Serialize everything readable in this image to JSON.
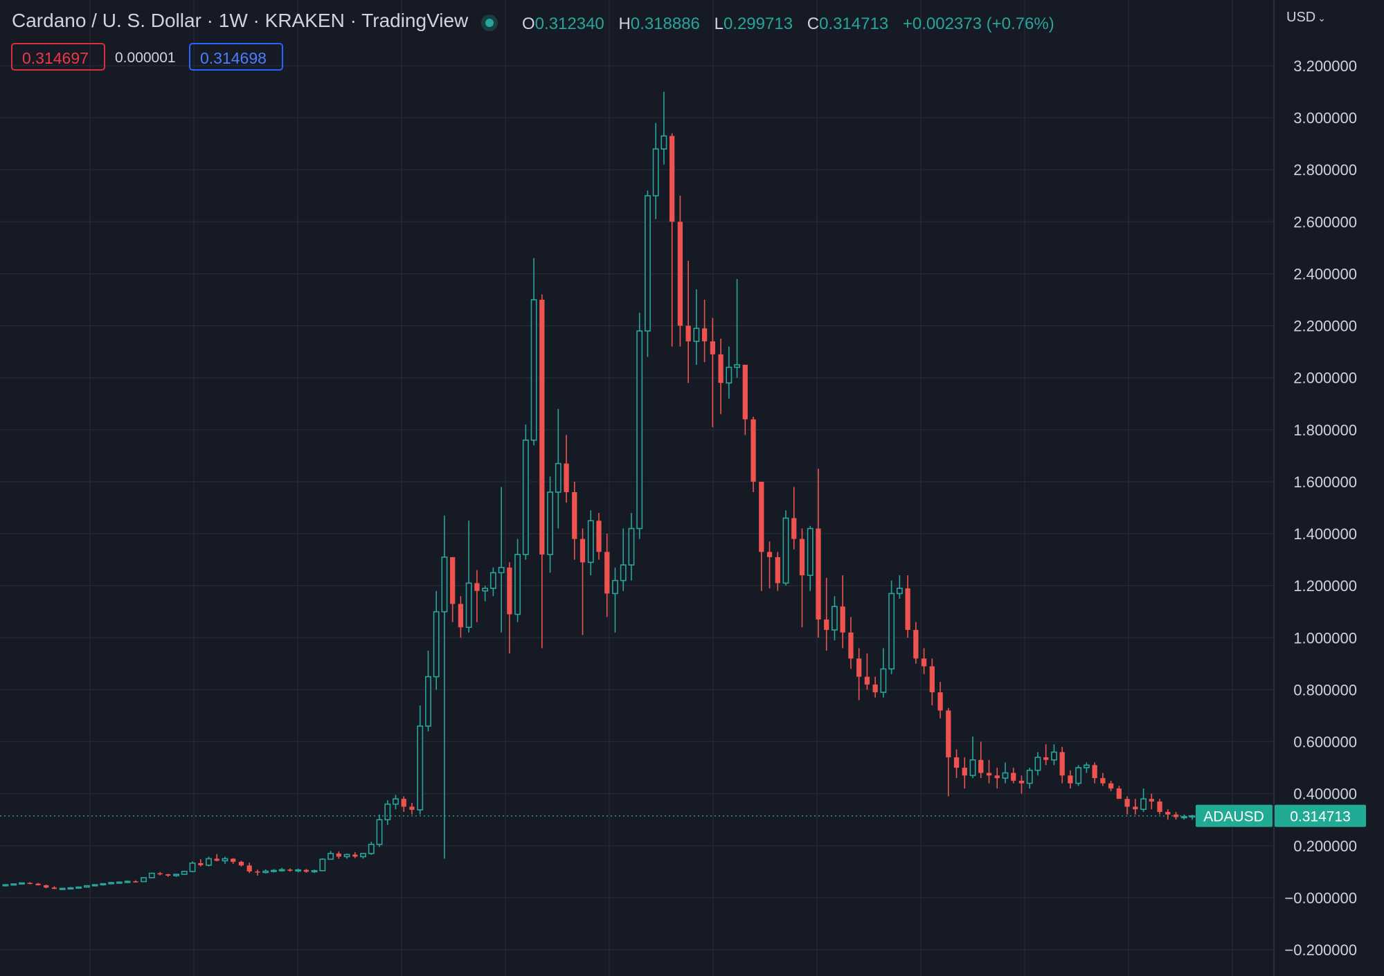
{
  "header": {
    "title": "Cardano / U. S. Dollar · 1W · KRAKEN · TradingView",
    "ohlc": {
      "o_label": "O",
      "o": "0.312340",
      "h_label": "H",
      "h": "0.318886",
      "l_label": "L",
      "l": "0.299713",
      "c_label": "C",
      "c": "0.314713",
      "change": "+0.002373 (+0.76%)"
    },
    "bid": "0.314697",
    "spread": "0.000001",
    "ask": "0.314698"
  },
  "scale": {
    "currency": "USD",
    "tick_labels": [
      "3.200000",
      "3.000000",
      "2.800000",
      "2.600000",
      "2.400000",
      "2.200000",
      "2.000000",
      "1.800000",
      "1.600000",
      "1.400000",
      "1.200000",
      "1.000000",
      "0.800000",
      "0.600000",
      "0.400000",
      "0.200000",
      "−0.000000",
      "−0.200000"
    ]
  },
  "last_price": {
    "symbol": "ADAUSD",
    "value": "0.314713"
  },
  "colors": {
    "background": "#161a25",
    "grid": "#232835",
    "up": "#26a69a",
    "down": "#ef5350",
    "text": "#d1d4dc",
    "last_price_tag": "#22ab94"
  },
  "chart_data": {
    "type": "candlestick",
    "symbol": "ADAUSD",
    "interval": "1W",
    "ylim": [
      -0.2,
      3.2
    ],
    "y_ticks": [
      3.2,
      3.0,
      2.8,
      2.6,
      2.4,
      2.2,
      2.0,
      1.8,
      1.6,
      1.4,
      1.2,
      1.0,
      0.8,
      0.6,
      0.4,
      0.2,
      0.0,
      -0.2
    ],
    "last_price": 0.314713,
    "candles": [
      [
        0.047,
        0.052,
        0.046,
        0.05
      ],
      [
        0.05,
        0.055,
        0.048,
        0.053
      ],
      [
        0.053,
        0.058,
        0.051,
        0.057
      ],
      [
        0.057,
        0.06,
        0.052,
        0.054
      ],
      [
        0.054,
        0.057,
        0.047,
        0.048
      ],
      [
        0.048,
        0.05,
        0.036,
        0.039
      ],
      [
        0.039,
        0.044,
        0.033,
        0.034
      ],
      [
        0.034,
        0.038,
        0.031,
        0.036
      ],
      [
        0.036,
        0.041,
        0.033,
        0.038
      ],
      [
        0.038,
        0.043,
        0.035,
        0.041
      ],
      [
        0.041,
        0.048,
        0.039,
        0.046
      ],
      [
        0.046,
        0.052,
        0.043,
        0.05
      ],
      [
        0.05,
        0.056,
        0.047,
        0.054
      ],
      [
        0.054,
        0.061,
        0.051,
        0.058
      ],
      [
        0.058,
        0.063,
        0.054,
        0.06
      ],
      [
        0.06,
        0.066,
        0.056,
        0.063
      ],
      [
        0.063,
        0.067,
        0.058,
        0.062
      ],
      [
        0.062,
        0.078,
        0.06,
        0.077
      ],
      [
        0.077,
        0.096,
        0.075,
        0.094
      ],
      [
        0.094,
        0.099,
        0.086,
        0.09
      ],
      [
        0.09,
        0.092,
        0.08,
        0.085
      ],
      [
        0.085,
        0.092,
        0.08,
        0.09
      ],
      [
        0.09,
        0.104,
        0.088,
        0.101
      ],
      [
        0.101,
        0.14,
        0.098,
        0.133
      ],
      [
        0.133,
        0.148,
        0.12,
        0.125
      ],
      [
        0.125,
        0.158,
        0.12,
        0.15
      ],
      [
        0.15,
        0.168,
        0.14,
        0.142
      ],
      [
        0.142,
        0.158,
        0.13,
        0.15
      ],
      [
        0.15,
        0.152,
        0.13,
        0.138
      ],
      [
        0.138,
        0.142,
        0.12,
        0.124
      ],
      [
        0.124,
        0.135,
        0.095,
        0.101
      ],
      [
        0.101,
        0.108,
        0.085,
        0.097
      ],
      [
        0.097,
        0.109,
        0.093,
        0.102
      ],
      [
        0.102,
        0.11,
        0.097,
        0.105
      ],
      [
        0.105,
        0.115,
        0.1,
        0.108
      ],
      [
        0.108,
        0.113,
        0.1,
        0.104
      ],
      [
        0.104,
        0.112,
        0.097,
        0.107
      ],
      [
        0.107,
        0.11,
        0.096,
        0.1
      ],
      [
        0.1,
        0.108,
        0.095,
        0.104
      ],
      [
        0.104,
        0.152,
        0.102,
        0.148
      ],
      [
        0.148,
        0.18,
        0.146,
        0.17
      ],
      [
        0.17,
        0.178,
        0.15,
        0.158
      ],
      [
        0.158,
        0.17,
        0.15,
        0.166
      ],
      [
        0.166,
        0.175,
        0.152,
        0.158
      ],
      [
        0.158,
        0.172,
        0.15,
        0.17
      ],
      [
        0.17,
        0.215,
        0.165,
        0.205
      ],
      [
        0.205,
        0.32,
        0.195,
        0.3
      ],
      [
        0.3,
        0.375,
        0.28,
        0.36
      ],
      [
        0.36,
        0.395,
        0.34,
        0.38
      ],
      [
        0.38,
        0.39,
        0.33,
        0.35
      ],
      [
        0.35,
        0.365,
        0.32,
        0.338
      ],
      [
        0.338,
        0.74,
        0.32,
        0.66
      ],
      [
        0.66,
        0.95,
        0.64,
        0.85
      ],
      [
        0.85,
        1.18,
        0.8,
        1.1
      ],
      [
        1.1,
        1.47,
        0.15,
        1.31
      ],
      [
        1.31,
        1.31,
        1.06,
        1.13
      ],
      [
        1.13,
        1.16,
        1.0,
        1.04
      ],
      [
        1.04,
        1.45,
        1.02,
        1.21
      ],
      [
        1.21,
        1.26,
        1.06,
        1.18
      ],
      [
        1.18,
        1.2,
        1.14,
        1.19
      ],
      [
        1.19,
        1.27,
        1.16,
        1.25
      ],
      [
        1.25,
        1.58,
        1.02,
        1.27
      ],
      [
        1.27,
        1.29,
        0.94,
        1.09
      ],
      [
        1.09,
        1.38,
        1.06,
        1.32
      ],
      [
        1.32,
        1.82,
        1.3,
        1.76
      ],
      [
        1.76,
        2.46,
        1.74,
        2.3
      ],
      [
        2.3,
        2.32,
        0.96,
        1.32
      ],
      [
        1.32,
        1.62,
        1.25,
        1.56
      ],
      [
        1.56,
        1.88,
        1.42,
        1.67
      ],
      [
        1.67,
        1.78,
        1.52,
        1.56
      ],
      [
        1.56,
        1.6,
        1.3,
        1.38
      ],
      [
        1.38,
        1.42,
        1.01,
        1.29
      ],
      [
        1.29,
        1.49,
        1.24,
        1.45
      ],
      [
        1.45,
        1.48,
        1.3,
        1.33
      ],
      [
        1.33,
        1.4,
        1.08,
        1.17
      ],
      [
        1.17,
        1.27,
        1.02,
        1.22
      ],
      [
        1.22,
        1.42,
        1.18,
        1.28
      ],
      [
        1.28,
        1.48,
        1.22,
        1.42
      ],
      [
        1.42,
        2.25,
        1.38,
        2.18
      ],
      [
        2.18,
        2.72,
        2.08,
        2.7
      ],
      [
        2.7,
        2.98,
        2.61,
        2.88
      ],
      [
        2.88,
        3.1,
        2.82,
        2.93
      ],
      [
        2.93,
        2.94,
        2.12,
        2.6
      ],
      [
        2.6,
        2.7,
        2.12,
        2.2
      ],
      [
        2.2,
        2.45,
        1.98,
        2.14
      ],
      [
        2.14,
        2.34,
        2.05,
        2.19
      ],
      [
        2.19,
        2.3,
        2.06,
        2.14
      ],
      [
        2.14,
        2.23,
        1.81,
        2.09
      ],
      [
        2.09,
        2.15,
        1.86,
        1.98
      ],
      [
        1.98,
        2.12,
        1.92,
        2.04
      ],
      [
        2.04,
        2.38,
        2.0,
        2.05
      ],
      [
        2.05,
        2.05,
        1.78,
        1.84
      ],
      [
        1.84,
        1.85,
        1.56,
        1.6
      ],
      [
        1.6,
        1.6,
        1.18,
        1.33
      ],
      [
        1.33,
        1.37,
        1.19,
        1.31
      ],
      [
        1.31,
        1.33,
        1.18,
        1.21
      ],
      [
        1.21,
        1.49,
        1.2,
        1.46
      ],
      [
        1.46,
        1.58,
        1.34,
        1.38
      ],
      [
        1.38,
        1.42,
        1.04,
        1.24
      ],
      [
        1.24,
        1.43,
        1.18,
        1.42
      ],
      [
        1.42,
        1.65,
        1.0,
        1.07
      ],
      [
        1.07,
        1.23,
        0.95,
        1.03
      ],
      [
        1.03,
        1.16,
        0.99,
        1.12
      ],
      [
        1.12,
        1.24,
        0.96,
        1.02
      ],
      [
        1.02,
        1.08,
        0.88,
        0.92
      ],
      [
        0.92,
        0.96,
        0.76,
        0.85
      ],
      [
        0.85,
        0.94,
        0.8,
        0.82
      ],
      [
        0.82,
        0.85,
        0.77,
        0.79
      ],
      [
        0.79,
        0.96,
        0.77,
        0.88
      ],
      [
        0.88,
        1.22,
        0.86,
        1.17
      ],
      [
        1.17,
        1.24,
        1.15,
        1.19
      ],
      [
        1.19,
        1.24,
        1.0,
        1.03
      ],
      [
        1.03,
        1.06,
        0.9,
        0.92
      ],
      [
        0.92,
        0.96,
        0.86,
        0.89
      ],
      [
        0.89,
        0.92,
        0.74,
        0.79
      ],
      [
        0.79,
        0.83,
        0.69,
        0.72
      ],
      [
        0.72,
        0.73,
        0.39,
        0.54
      ],
      [
        0.54,
        0.57,
        0.46,
        0.5
      ],
      [
        0.5,
        0.54,
        0.42,
        0.47
      ],
      [
        0.47,
        0.62,
        0.46,
        0.53
      ],
      [
        0.53,
        0.6,
        0.46,
        0.48
      ],
      [
        0.48,
        0.53,
        0.44,
        0.47
      ],
      [
        0.47,
        0.5,
        0.42,
        0.46
      ],
      [
        0.46,
        0.52,
        0.44,
        0.48
      ],
      [
        0.48,
        0.5,
        0.44,
        0.45
      ],
      [
        0.45,
        0.47,
        0.4,
        0.44
      ],
      [
        0.44,
        0.5,
        0.42,
        0.49
      ],
      [
        0.49,
        0.56,
        0.47,
        0.54
      ],
      [
        0.54,
        0.59,
        0.51,
        0.53
      ],
      [
        0.53,
        0.59,
        0.51,
        0.56
      ],
      [
        0.56,
        0.58,
        0.44,
        0.47
      ],
      [
        0.47,
        0.49,
        0.42,
        0.44
      ],
      [
        0.44,
        0.51,
        0.43,
        0.5
      ],
      [
        0.5,
        0.52,
        0.48,
        0.51
      ],
      [
        0.51,
        0.52,
        0.44,
        0.46
      ],
      [
        0.46,
        0.48,
        0.43,
        0.44
      ],
      [
        0.44,
        0.45,
        0.41,
        0.42
      ],
      [
        0.42,
        0.43,
        0.39,
        0.38
      ],
      [
        0.38,
        0.39,
        0.32,
        0.35
      ],
      [
        0.35,
        0.38,
        0.32,
        0.34
      ],
      [
        0.34,
        0.42,
        0.33,
        0.38
      ],
      [
        0.38,
        0.4,
        0.34,
        0.37
      ],
      [
        0.37,
        0.38,
        0.32,
        0.33
      ],
      [
        0.33,
        0.34,
        0.3,
        0.32
      ],
      [
        0.32,
        0.33,
        0.3,
        0.31
      ],
      [
        0.31,
        0.32,
        0.3,
        0.312
      ],
      [
        0.31234,
        0.318886,
        0.299713,
        0.314713
      ]
    ]
  }
}
